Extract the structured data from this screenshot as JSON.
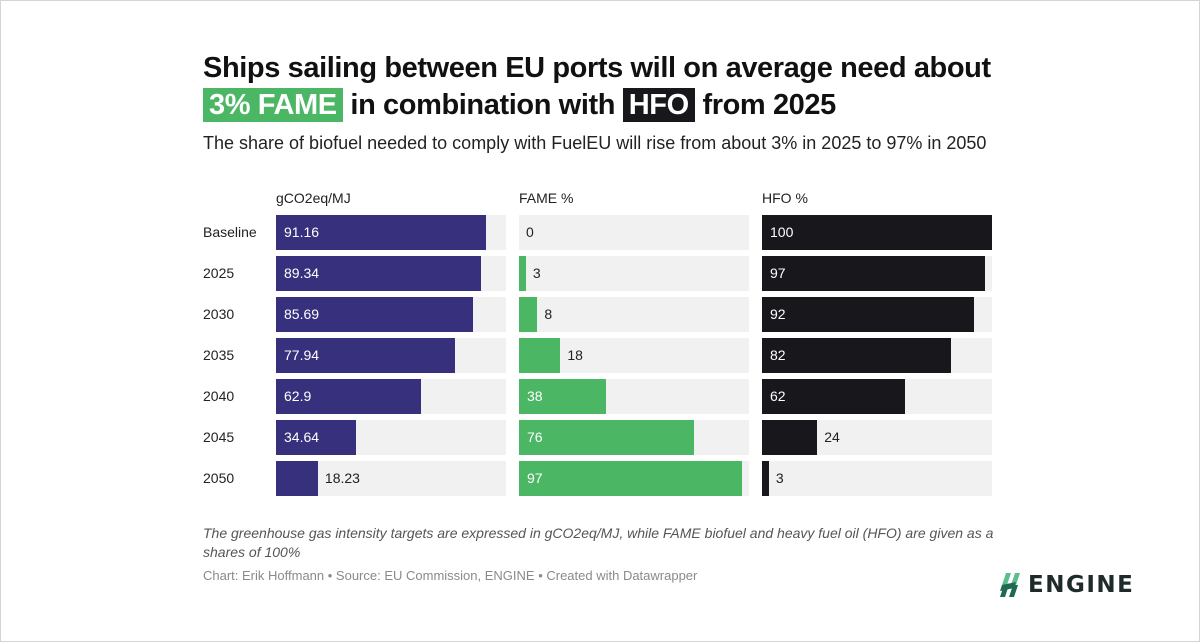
{
  "header": {
    "title_part1": "Ships sailing between EU ports will on average need about",
    "title_hl1": "3% FAME",
    "title_part2": "in combination with",
    "title_hl2": "HFO",
    "title_part3": "from 2025",
    "subtitle": "The share of biofuel needed to comply with FuelEU will rise from about 3% in 2025 to 97% in 2050"
  },
  "colors": {
    "ghg": "#37307c",
    "fame": "#4bb764",
    "hfo": "#18171c",
    "track": "#f1f1f1",
    "logo_dark": "#1f6b52",
    "logo_light": "#5bbf8d"
  },
  "chart_data": {
    "type": "bar",
    "orientation": "horizontal",
    "title": "Ships sailing between EU ports will on average need about 3% FAME in combination with HFO from 2025",
    "subtitle": "The share of biofuel needed to comply with FuelEU will rise from about 3% in 2025 to 97% in 2050",
    "categories": [
      "Baseline",
      "2025",
      "2030",
      "2035",
      "2040",
      "2045",
      "2050"
    ],
    "xlim": [
      0,
      100
    ],
    "grid": false,
    "series": [
      {
        "name": "gCO2eq/MJ",
        "values": [
          91.16,
          89.34,
          85.69,
          77.94,
          62.9,
          34.64,
          18.23
        ],
        "labels": [
          "91.16",
          "89.34",
          "85.69",
          "77.94",
          "62.9",
          "34.64",
          "18.23"
        ]
      },
      {
        "name": "FAME %",
        "values": [
          0,
          3,
          8,
          18,
          38,
          76,
          97
        ],
        "labels": [
          "0",
          "3",
          "8",
          "18",
          "38",
          "76",
          "97"
        ]
      },
      {
        "name": "HFO %",
        "values": [
          100,
          97,
          92,
          82,
          62,
          24,
          3
        ],
        "labels": [
          "100",
          "97",
          "92",
          "82",
          "62",
          "24",
          "3"
        ]
      }
    ]
  },
  "footer": {
    "notes": "The greenhouse gas intensity targets are expressed in gCO2eq/MJ, while FAME biofuel and heavy fuel oil (HFO) are given as a shares of 100%",
    "byline": "Chart: Erik Hoffmann • Source: EU Commission, ENGINE • Created with Datawrapper",
    "logo_text": "ENGINE",
    "logo_icon": "engine-logo-icon"
  }
}
